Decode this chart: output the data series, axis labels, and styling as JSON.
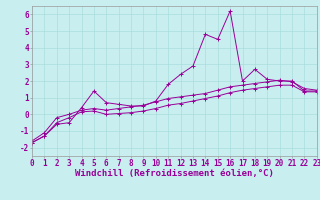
{
  "x": [
    0,
    1,
    2,
    3,
    4,
    5,
    6,
    7,
    8,
    9,
    10,
    11,
    12,
    13,
    14,
    15,
    16,
    17,
    18,
    19,
    20,
    21,
    22,
    23
  ],
  "line1": [
    -1.7,
    -1.3,
    -0.6,
    -0.5,
    0.4,
    1.4,
    0.7,
    0.6,
    0.5,
    0.5,
    0.8,
    1.8,
    2.4,
    2.9,
    4.8,
    4.5,
    6.2,
    2.0,
    2.7,
    2.1,
    2.0,
    2.0,
    1.4,
    1.4
  ],
  "line2": [
    -1.7,
    -1.3,
    -0.5,
    -0.2,
    0.15,
    0.2,
    0.0,
    0.05,
    0.1,
    0.2,
    0.35,
    0.55,
    0.65,
    0.8,
    0.95,
    1.1,
    1.3,
    1.45,
    1.55,
    1.65,
    1.75,
    1.75,
    1.35,
    1.35
  ],
  "line3": [
    -1.6,
    -1.1,
    -0.2,
    0.0,
    0.25,
    0.35,
    0.25,
    0.35,
    0.45,
    0.55,
    0.75,
    0.95,
    1.05,
    1.15,
    1.25,
    1.45,
    1.65,
    1.75,
    1.85,
    1.95,
    2.05,
    1.95,
    1.55,
    1.45
  ],
  "bg_color": "#c8eef0",
  "grid_color": "#aadddd",
  "line_color": "#990099",
  "xlabel": "Windchill (Refroidissement éolien,°C)",
  "ylim": [
    -2.5,
    6.5
  ],
  "xlim": [
    0,
    23
  ],
  "yticks": [
    -2,
    -1,
    0,
    1,
    2,
    3,
    4,
    5,
    6
  ],
  "xticks": [
    0,
    1,
    2,
    3,
    4,
    5,
    6,
    7,
    8,
    9,
    10,
    11,
    12,
    13,
    14,
    15,
    16,
    17,
    18,
    19,
    20,
    21,
    22,
    23
  ],
  "tick_fontsize": 5.5,
  "xlabel_fontsize": 6.5,
  "marker": "+"
}
